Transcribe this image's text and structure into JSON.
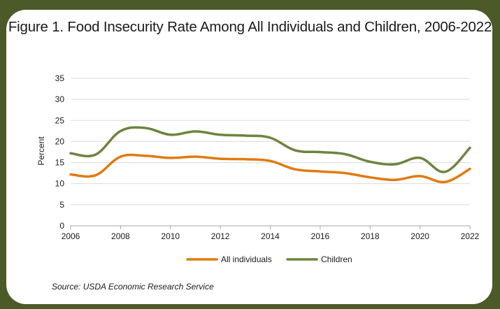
{
  "chart_data": {
    "type": "line",
    "title": "Figure 1. Food Insecurity Rate Among All Individuals and Children, 2006-2022",
    "ylabel": "Percent",
    "xlabel": "",
    "ylim": [
      0,
      35
    ],
    "yticks": [
      0,
      5,
      10,
      15,
      20,
      25,
      30,
      35
    ],
    "xticks": [
      2006,
      2008,
      2010,
      2012,
      2014,
      2016,
      2018,
      2020,
      2022
    ],
    "grid": true,
    "legend_position": "bottom",
    "x": [
      2006,
      2007,
      2008,
      2009,
      2010,
      2011,
      2012,
      2013,
      2014,
      2015,
      2016,
      2017,
      2018,
      2019,
      2020,
      2021,
      2022
    ],
    "series": [
      {
        "name": "All individuals",
        "color": "#e07b10",
        "values": [
          12.2,
          12.0,
          16.4,
          16.6,
          16.1,
          16.4,
          15.9,
          15.8,
          15.4,
          13.4,
          12.9,
          12.5,
          11.5,
          10.9,
          11.8,
          10.4,
          13.5
        ]
      },
      {
        "name": "Children",
        "color": "#6e8440",
        "values": [
          17.2,
          16.9,
          22.5,
          23.2,
          21.6,
          22.4,
          21.6,
          21.4,
          20.9,
          17.9,
          17.5,
          17.0,
          15.2,
          14.6,
          16.1,
          12.8,
          18.5
        ]
      }
    ],
    "source": "Source: USDA Economic Research Service"
  }
}
